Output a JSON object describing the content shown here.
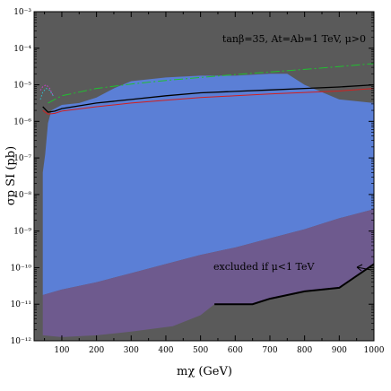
{
  "chart_data": {
    "type": "area",
    "xlabel": "mχ (GeV)",
    "ylabel": "σp SI (pb)",
    "xlim": [
      20,
      1000
    ],
    "ylim_log10": [
      -12,
      -3
    ],
    "yscale": "log",
    "xticks": [
      100,
      200,
      300,
      400,
      500,
      600,
      700,
      800,
      900,
      1000
    ],
    "yticks": [
      {
        "exp": -3,
        "label": "10⁻³"
      },
      {
        "exp": -4,
        "label": "10⁻⁴"
      },
      {
        "exp": -5,
        "label": "10⁻⁵"
      },
      {
        "exp": -6,
        "label": "10⁻⁶"
      },
      {
        "exp": -7,
        "label": "10⁻⁷"
      },
      {
        "exp": -8,
        "label": "10⁻⁸"
      },
      {
        "exp": -9,
        "label": "10⁻⁹"
      },
      {
        "exp": -10,
        "label": "10⁻¹⁰"
      },
      {
        "exp": -11,
        "label": "10⁻¹¹"
      },
      {
        "exp": -12,
        "label": "10⁻¹²"
      }
    ],
    "annotation_top": "tanβ=35, At=Ab=1 TeV, μ>0",
    "annotation_excluded": "excluded if μ<1 TeV",
    "colors": {
      "background": "#5a5a5a",
      "allowed_region": "#5b7fd6",
      "excluded_region": "#6e5a8e",
      "black_curve": "#000000",
      "red_curve": "#d02020",
      "green_curve": "#20c030",
      "magenta_curve": "#d040d0",
      "cyan_curve": "#30c0d0"
    },
    "regions": [
      {
        "role": "allowed_region",
        "polygon": [
          [
            45,
            -11.75
          ],
          [
            45,
            -7.4
          ],
          [
            52,
            -6.9
          ],
          [
            60,
            -6.05
          ],
          [
            70,
            -5.7
          ],
          [
            100,
            -5.55
          ],
          [
            150,
            -5.5
          ],
          [
            200,
            -5.35
          ],
          [
            250,
            -5.1
          ],
          [
            300,
            -4.9
          ],
          [
            400,
            -4.8
          ],
          [
            500,
            -4.75
          ],
          [
            600,
            -4.75
          ],
          [
            700,
            -4.7
          ],
          [
            750,
            -4.7
          ],
          [
            800,
            -5.0
          ],
          [
            900,
            -5.4
          ],
          [
            1000,
            -5.5
          ],
          [
            1000,
            -8.4
          ],
          [
            900,
            -8.65
          ],
          [
            800,
            -8.95
          ],
          [
            700,
            -9.2
          ],
          [
            600,
            -9.45
          ],
          [
            500,
            -9.65
          ],
          [
            400,
            -9.9
          ],
          [
            300,
            -10.15
          ],
          [
            200,
            -10.4
          ],
          [
            100,
            -10.6
          ],
          [
            45,
            -10.75
          ]
        ]
      },
      {
        "role": "excluded_region",
        "polygon": [
          [
            45,
            -10.75
          ],
          [
            100,
            -10.6
          ],
          [
            200,
            -10.4
          ],
          [
            300,
            -10.15
          ],
          [
            400,
            -9.9
          ],
          [
            500,
            -9.65
          ],
          [
            600,
            -9.45
          ],
          [
            700,
            -9.2
          ],
          [
            800,
            -8.95
          ],
          [
            900,
            -8.65
          ],
          [
            1000,
            -8.4
          ],
          [
            1000,
            -9.9
          ],
          [
            900,
            -10.55
          ],
          [
            800,
            -10.65
          ],
          [
            700,
            -10.85
          ],
          [
            650,
            -11.0
          ],
          [
            540,
            -11.0
          ],
          [
            500,
            -11.3
          ],
          [
            420,
            -11.6
          ],
          [
            300,
            -11.75
          ],
          [
            200,
            -11.85
          ],
          [
            100,
            -11.9
          ],
          [
            45,
            -11.85
          ]
        ]
      }
    ],
    "series": [
      {
        "color_role": "black_curve",
        "style": "solid",
        "x": [
          45,
          60,
          80,
          100,
          200,
          300,
          400,
          500,
          600,
          700,
          800,
          900,
          1000
        ],
        "y": [
          -5.6,
          -5.75,
          -5.72,
          -5.65,
          -5.5,
          -5.4,
          -5.3,
          -5.22,
          -5.18,
          -5.14,
          -5.1,
          -5.06,
          -5.0
        ]
      },
      {
        "color_role": "red_curve",
        "style": "solid",
        "x": [
          45,
          60,
          80,
          100,
          200,
          300,
          400,
          500,
          600,
          700,
          800,
          900,
          1000
        ],
        "y": [
          -5.7,
          -5.8,
          -5.78,
          -5.72,
          -5.6,
          -5.5,
          -5.42,
          -5.35,
          -5.3,
          -5.25,
          -5.21,
          -5.17,
          -5.1
        ]
      },
      {
        "color_role": "green_curve",
        "style": "dashed",
        "x": [
          60,
          100,
          200,
          300,
          400,
          500,
          600,
          700,
          800,
          900,
          1000
        ],
        "y": [
          -5.5,
          -5.3,
          -5.1,
          -4.98,
          -4.88,
          -4.8,
          -4.72,
          -4.65,
          -4.58,
          -4.5,
          -4.42
        ]
      },
      {
        "color_role": "magenta_curve",
        "style": "dotted",
        "x": [
          38,
          45,
          55,
          65,
          75
        ],
        "y": [
          -5.15,
          -5.05,
          -5.0,
          -5.1,
          -5.3
        ]
      },
      {
        "color_role": "cyan_curve",
        "style": "dotted",
        "x": [
          38,
          45,
          55,
          65,
          75
        ],
        "y": [
          -5.4,
          -5.2,
          -5.1,
          -5.15,
          -5.3
        ]
      }
    ],
    "boundary_curve": {
      "x": [
        540,
        650,
        700,
        800,
        900,
        1000
      ],
      "y": [
        -11.0,
        -11.0,
        -10.85,
        -10.65,
        -10.55,
        -9.9
      ]
    }
  }
}
